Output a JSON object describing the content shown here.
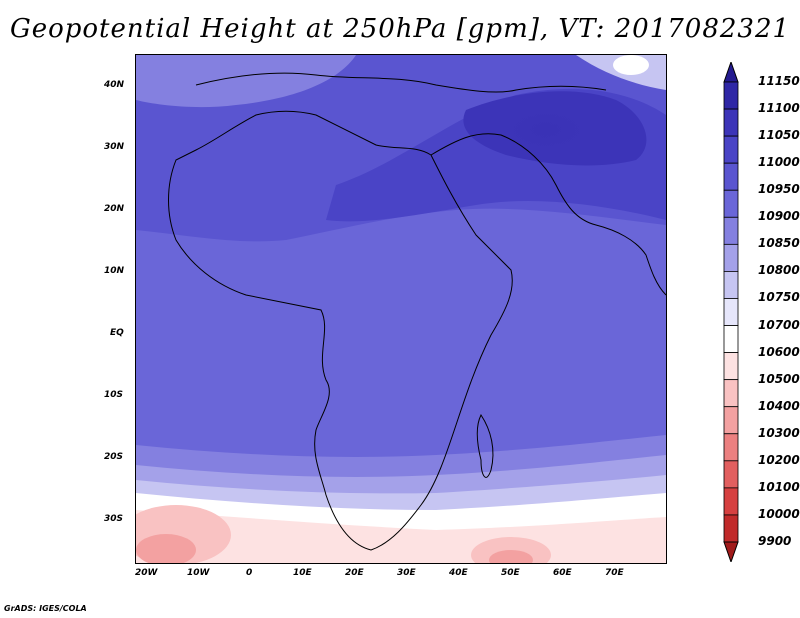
{
  "title": "Geopotential Height at 250hPa [gpm], VT: 2017082321",
  "footer": "GrADS: IGES/COLA",
  "lat_ticks": [
    {
      "label": "40N",
      "value": 40
    },
    {
      "label": "30N",
      "value": 30
    },
    {
      "label": "20N",
      "value": 20
    },
    {
      "label": "10N",
      "value": 10
    },
    {
      "label": "EQ",
      "value": 0
    },
    {
      "label": "10S",
      "value": -10
    },
    {
      "label": "20S",
      "value": -20
    },
    {
      "label": "30S",
      "value": -30
    }
  ],
  "lon_ticks": [
    {
      "label": "20W",
      "value": -20
    },
    {
      "label": "10W",
      "value": -10
    },
    {
      "label": "0",
      "value": 0
    },
    {
      "label": "10E",
      "value": 10
    },
    {
      "label": "20E",
      "value": 20
    },
    {
      "label": "30E",
      "value": 30
    },
    {
      "label": "40E",
      "value": 40
    },
    {
      "label": "50E",
      "value": 50
    },
    {
      "label": "60E",
      "value": 60
    },
    {
      "label": "70E",
      "value": 70
    }
  ],
  "colorbar": {
    "levels": [
      "11150",
      "11100",
      "11050",
      "11000",
      "10950",
      "10900",
      "10850",
      "10800",
      "10750",
      "10700",
      "10600",
      "10500",
      "10400",
      "10300",
      "10200",
      "10100",
      "10000",
      "9900"
    ],
    "colors": [
      "#241a8f",
      "#2f27a6",
      "#3c34b8",
      "#4a44c6",
      "#5a55d0",
      "#6a66d8",
      "#8480e0",
      "#a4a1e9",
      "#c6c5f2",
      "#e6e6fb",
      "#ffffff",
      "#fde2e2",
      "#f9c2c2",
      "#f3a1a1",
      "#ec8080",
      "#e25f5f",
      "#d64040",
      "#c12a2a",
      "#a01a1a"
    ]
  }
}
